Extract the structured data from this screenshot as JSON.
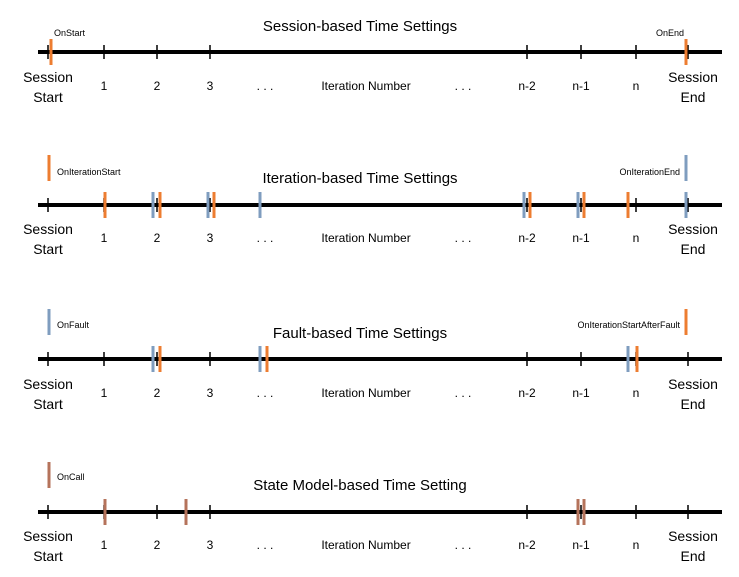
{
  "colors": {
    "axis": "#000000",
    "orange": "#ED7D31",
    "blue": "#7F9DBF",
    "brown": "#B5735B"
  },
  "tick_labels": [
    "1",
    "2",
    "3",
    ". . .",
    "Iteration Number",
    ". . .",
    "n-2",
    "n-1",
    "n"
  ],
  "start_label": [
    "Session",
    "Start"
  ],
  "end_label": [
    "Session",
    "End"
  ],
  "rows": [
    {
      "title": "Session-based Time Settings",
      "left_event": "OnStart",
      "right_event": "OnEnd",
      "legend_color": "orange",
      "legend_label_color": "orange",
      "markers": [
        {
          "pos": "start",
          "color": "orange"
        },
        {
          "pos": "end",
          "color": "orange"
        }
      ]
    },
    {
      "title": "Iteration-based Time Settings",
      "left_event": "OnIterationStart",
      "right_event": "OnIterationEnd",
      "left_color": "orange",
      "right_color": "blue",
      "markers": [
        {
          "pos": "1",
          "color": "orange"
        },
        {
          "pos": "2",
          "color": "blue"
        },
        {
          "pos": "2",
          "color": "orange"
        },
        {
          "pos": "3",
          "color": "blue"
        },
        {
          "pos": "3",
          "color": "orange"
        },
        {
          "pos": "dots1",
          "color": "blue"
        },
        {
          "pos": "n-2",
          "color": "blue"
        },
        {
          "pos": "n-2",
          "color": "orange"
        },
        {
          "pos": "n-1",
          "color": "blue"
        },
        {
          "pos": "n-1",
          "color": "orange"
        },
        {
          "pos": "n",
          "color": "orange"
        },
        {
          "pos": "end",
          "color": "blue"
        }
      ]
    },
    {
      "title": "Fault-based Time Settings",
      "left_event": "OnFault",
      "right_event": "OnIterationStartAfterFault",
      "left_color": "blue",
      "right_color": "orange",
      "markers": [
        {
          "pos": "2",
          "color": "blue"
        },
        {
          "pos": "2",
          "color": "orange"
        },
        {
          "pos": "dots1",
          "color": "blue"
        },
        {
          "pos": "dots1",
          "color": "orange"
        },
        {
          "pos": "n",
          "color": "blue"
        },
        {
          "pos": "n",
          "color": "orange"
        }
      ]
    },
    {
      "title": "State Model-based Time Setting",
      "left_event": "OnCall",
      "left_color": "brown",
      "markers": [
        {
          "pos": "1",
          "color": "brown"
        },
        {
          "pos": "2-3",
          "color": "brown"
        },
        {
          "pos": "n-1",
          "color": "brown"
        },
        {
          "pos": "n-1",
          "color": "brown"
        }
      ]
    }
  ]
}
